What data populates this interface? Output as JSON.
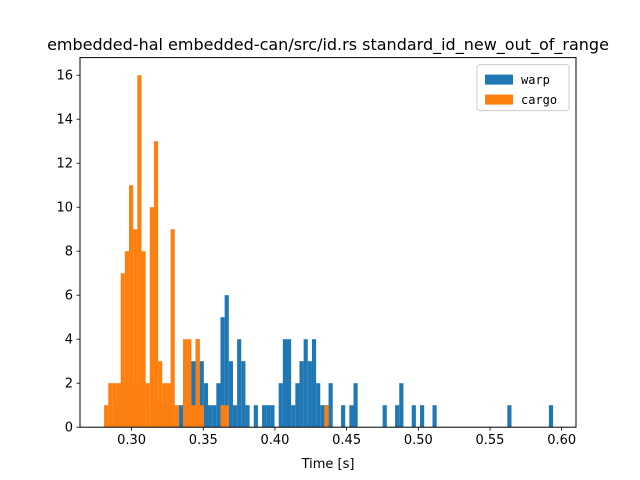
{
  "chart_data": {
    "type": "bar",
    "title": "embedded-hal embedded-can/src/id.rs standard_id_new_out_of_range",
    "xlabel": "Time [s]",
    "ylabel": "",
    "xlim": [
      0.264,
      0.61
    ],
    "ylim": [
      0,
      16.8
    ],
    "bin_width": 0.0029,
    "xticks": [
      0.3,
      0.35,
      0.4,
      0.45,
      0.5,
      0.55,
      0.6
    ],
    "xtick_labels": [
      "0.30",
      "0.35",
      "0.40",
      "0.45",
      "0.50",
      "0.55",
      "0.60"
    ],
    "yticks": [
      0,
      2,
      4,
      6,
      8,
      10,
      12,
      14,
      16
    ],
    "ytick_labels": [
      "0",
      "2",
      "4",
      "6",
      "8",
      "10",
      "12",
      "14",
      "16"
    ],
    "grid": false,
    "legend_position": "top-right",
    "series": [
      {
        "name": "warp",
        "color": "#1f77b4",
        "bins": [
          [
            0.2895,
            1
          ],
          [
            0.2924,
            2
          ],
          [
            0.2953,
            1
          ],
          [
            0.2982,
            2
          ],
          [
            0.3011,
            2
          ],
          [
            0.3069,
            2
          ],
          [
            0.3127,
            1
          ],
          [
            0.3185,
            1
          ],
          [
            0.3214,
            1
          ],
          [
            0.3272,
            1
          ],
          [
            0.333,
            1
          ],
          [
            0.3359,
            3
          ],
          [
            0.3388,
            3
          ],
          [
            0.3417,
            3
          ],
          [
            0.3446,
            4
          ],
          [
            0.3475,
            3
          ],
          [
            0.3504,
            2
          ],
          [
            0.3533,
            1
          ],
          [
            0.3562,
            1
          ],
          [
            0.3591,
            2
          ],
          [
            0.362,
            5
          ],
          [
            0.3649,
            6
          ],
          [
            0.3678,
            3
          ],
          [
            0.3707,
            1
          ],
          [
            0.3736,
            4
          ],
          [
            0.3765,
            3
          ],
          [
            0.3794,
            1
          ],
          [
            0.3852,
            1
          ],
          [
            0.391,
            1
          ],
          [
            0.3939,
            1
          ],
          [
            0.3968,
            1
          ],
          [
            0.4026,
            2
          ],
          [
            0.4055,
            4
          ],
          [
            0.4084,
            4
          ],
          [
            0.4113,
            1
          ],
          [
            0.4142,
            2
          ],
          [
            0.4171,
            3
          ],
          [
            0.42,
            4
          ],
          [
            0.4229,
            3
          ],
          [
            0.4258,
            4
          ],
          [
            0.4287,
            2
          ],
          [
            0.4316,
            1
          ],
          [
            0.4345,
            1
          ],
          [
            0.4374,
            2
          ],
          [
            0.4461,
            1
          ],
          [
            0.4519,
            1
          ],
          [
            0.4548,
            2
          ],
          [
            0.4751,
            1
          ],
          [
            0.4838,
            1
          ],
          [
            0.4867,
            2
          ],
          [
            0.4954,
            1
          ],
          [
            0.5012,
            1
          ],
          [
            0.5099,
            1
          ],
          [
            0.5621,
            1
          ],
          [
            0.5911,
            1
          ]
        ]
      },
      {
        "name": "cargo",
        "color": "#ff7f0e",
        "bins": [
          [
            0.2808,
            1
          ],
          [
            0.2837,
            2
          ],
          [
            0.2866,
            2
          ],
          [
            0.2895,
            2
          ],
          [
            0.2924,
            7
          ],
          [
            0.2953,
            8
          ],
          [
            0.2982,
            11
          ],
          [
            0.3011,
            9
          ],
          [
            0.304,
            16
          ],
          [
            0.3069,
            8
          ],
          [
            0.3098,
            2
          ],
          [
            0.3127,
            10
          ],
          [
            0.3156,
            13
          ],
          [
            0.3185,
            3
          ],
          [
            0.3214,
            2
          ],
          [
            0.3243,
            2
          ],
          [
            0.3272,
            9
          ],
          [
            0.3301,
            1
          ],
          [
            0.3359,
            4
          ],
          [
            0.3388,
            4
          ],
          [
            0.3417,
            1
          ],
          [
            0.3446,
            4
          ],
          [
            0.3475,
            1
          ],
          [
            0.362,
            1
          ],
          [
            0.3649,
            1
          ],
          [
            0.4345,
            1
          ]
        ]
      }
    ]
  }
}
